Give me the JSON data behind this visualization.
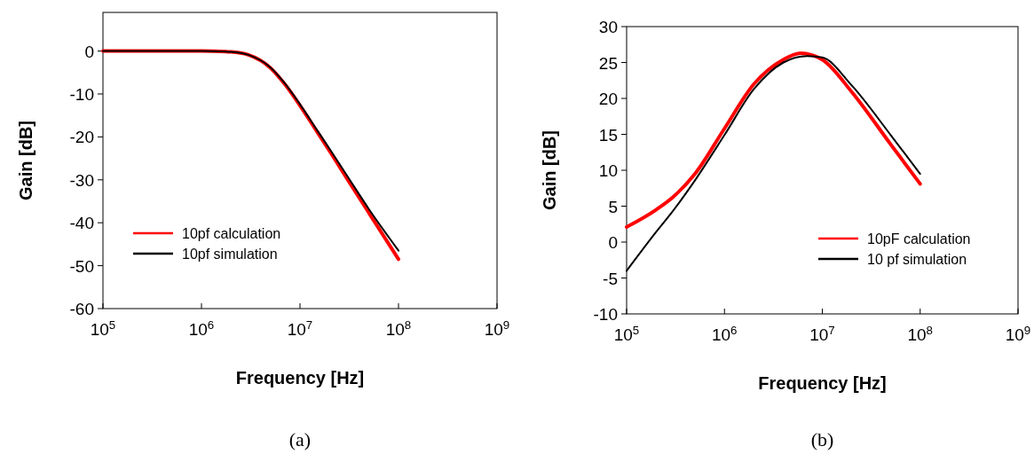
{
  "chart_data": [
    {
      "type": "line",
      "xlabel": "Frequency [Hz]",
      "ylabel": "Gain [dB]",
      "log": "x",
      "xlim": [
        100000,
        1000000000
      ],
      "ylim": [
        -60,
        9
      ],
      "xticks": [
        {
          "value": 100000,
          "label": "10$^{5}$"
        },
        {
          "value": 1000000,
          "label": "10$^{6}$"
        },
        {
          "value": 10000000,
          "label": "10$^{7}$"
        },
        {
          "value": 100000000,
          "label": "10$^{8}$"
        },
        {
          "value": 1000000000,
          "label": "10$^{9}$"
        }
      ],
      "yticks": [
        -60,
        -50,
        -40,
        -30,
        -20,
        -10,
        0
      ],
      "grid": false,
      "legend": "bottom left",
      "annotations": [
        "(a)"
      ],
      "series": [
        {
          "name": "10pf calculation",
          "color": "#ff0000",
          "x": [
            100000,
            1000000,
            2000000,
            3000000,
            5000000,
            7000000,
            10000000,
            15000000,
            20000000,
            30000000,
            50000000,
            100000000
          ],
          "values": [
            0,
            0,
            -0.2,
            -0.9,
            -3.9,
            -7.7,
            -12.7,
            -18.9,
            -23.3,
            -29.7,
            -37.7,
            -48.5
          ]
        },
        {
          "name": "10pf simulation",
          "color": "#000000",
          "x": [
            100000,
            1000000,
            2000000,
            3000000,
            5000000,
            7000000,
            10000000,
            15000000,
            20000000,
            30000000,
            50000000,
            100000000
          ],
          "values": [
            0,
            0,
            -0.2,
            -0.9,
            -3.8,
            -7.5,
            -12.4,
            -18.5,
            -22.8,
            -29,
            -36.8,
            -46.5
          ]
        }
      ]
    },
    {
      "type": "line",
      "xlabel": "Frequency [Hz]",
      "ylabel": "Gain [dB]",
      "log": "x",
      "xlim": [
        100000,
        1000000000
      ],
      "ylim": [
        -10,
        30
      ],
      "xticks": [
        {
          "value": 100000,
          "label": "10$^{5}$"
        },
        {
          "value": 1000000,
          "label": "10$^{6}$"
        },
        {
          "value": 10000000,
          "label": "10$^{7}$"
        },
        {
          "value": 100000000,
          "label": "10$^{8}$"
        },
        {
          "value": 1000000000,
          "label": "10$^{9}$"
        }
      ],
      "yticks": [
        -10,
        -5,
        0,
        5,
        10,
        15,
        20,
        25,
        30
      ],
      "grid": false,
      "legend": "bottom right",
      "annotations": [
        "(b)"
      ],
      "series": [
        {
          "name": "10pF calculation",
          "color": "#ff0000",
          "x": [
            100000,
            200000,
            300000,
            500000,
            1000000,
            2000000,
            4000000,
            6000000,
            10000000,
            20000000,
            50000000,
            100000000
          ],
          "values": [
            2.1,
            4.5,
            6.3,
            9.5,
            15.8,
            22,
            25.4,
            26.3,
            25.4,
            20.9,
            13.6,
            8.1
          ]
        },
        {
          "name": "10 pf simulation",
          "color": "#000000",
          "x": [
            100000,
            200000,
            300000,
            500000,
            1000000,
            2000000,
            4000000,
            7000000,
            10000000,
            20000000,
            50000000,
            100000000
          ],
          "values": [
            -4,
            1.4,
            4.4,
            8.6,
            14.9,
            21.3,
            25,
            25.9,
            25.7,
            21.8,
            14.9,
            9.5
          ]
        }
      ]
    }
  ]
}
